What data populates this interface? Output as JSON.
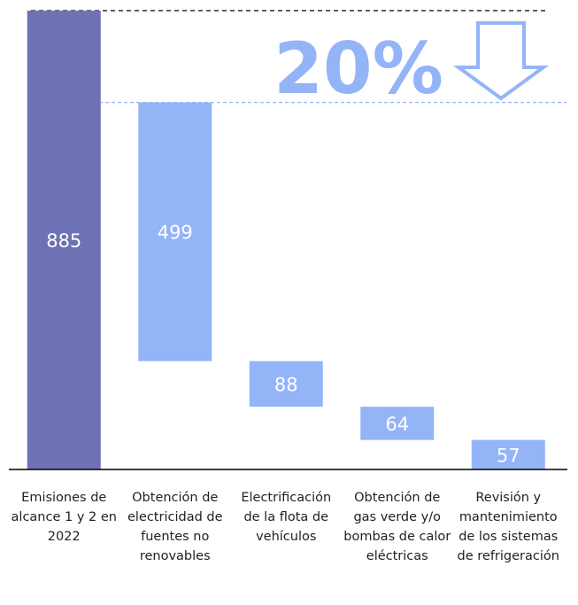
{
  "chart_data": {
    "type": "waterfall",
    "categories": [
      "Emisiones de alcance 1 y 2 en 2022",
      "Obtención de electricidad de fuentes no renovables",
      "Electrificación de la flota de vehículos",
      "Obtención de gas verde y/o bombas de calor eléctricas",
      "Revisión y mantenimiento de los sistemas de refrigeración"
    ],
    "values": [
      885,
      499,
      88,
      64,
      57
    ],
    "colors": [
      "#6e72b4",
      "#94b4f8",
      "#94b4f8",
      "#94b4f8",
      "#94b4f8"
    ],
    "ylim": [
      0,
      885
    ],
    "reference_lines": [
      {
        "value": 885,
        "color": "#000000"
      },
      {
        "value": 708,
        "color": "#94b4f8"
      }
    ],
    "annotation": "20%"
  }
}
